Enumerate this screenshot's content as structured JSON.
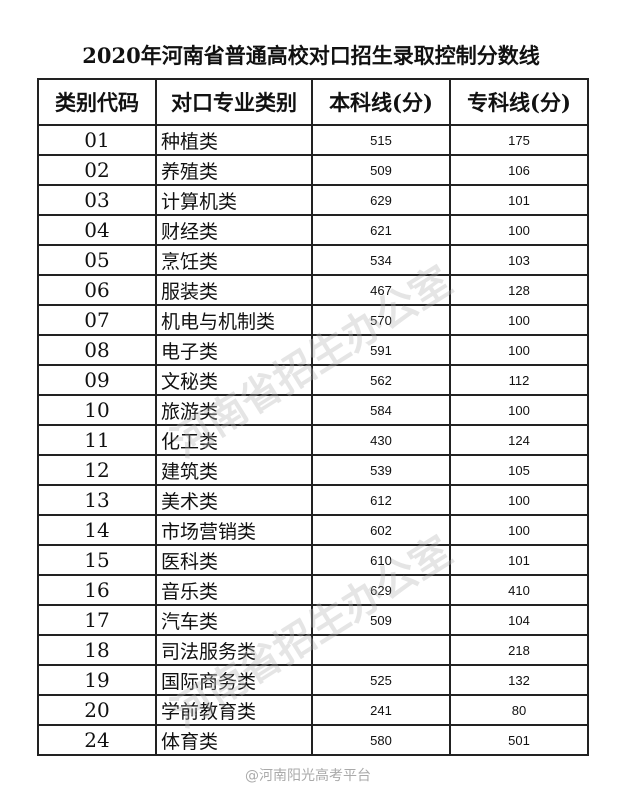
{
  "title": "2020年河南省普通高校对口招生录取控制分数线",
  "headers": [
    "类别代码",
    "对口专业类别",
    "本科线(分)",
    "专科线(分)"
  ],
  "rows": [
    [
      "01",
      "种植类",
      "515",
      "175"
    ],
    [
      "02",
      "养殖类",
      "509",
      "106"
    ],
    [
      "03",
      "计算机类",
      "629",
      "101"
    ],
    [
      "04",
      "财经类",
      "621",
      "100"
    ],
    [
      "05",
      "烹饪类",
      "534",
      "103"
    ],
    [
      "06",
      "服装类",
      "467",
      "128"
    ],
    [
      "07",
      "机电与机制类",
      "570",
      "100"
    ],
    [
      "08",
      "电子类",
      "591",
      "100"
    ],
    [
      "09",
      "文秘类",
      "562",
      "112"
    ],
    [
      "10",
      "旅游类",
      "584",
      "100"
    ],
    [
      "11",
      "化工类",
      "430",
      "124"
    ],
    [
      "12",
      "建筑类",
      "539",
      "105"
    ],
    [
      "13",
      "美术类",
      "612",
      "100"
    ],
    [
      "14",
      "市场营销类",
      "602",
      "100"
    ],
    [
      "15",
      "医科类",
      "610",
      "101"
    ],
    [
      "16",
      "音乐类",
      "629",
      "410"
    ],
    [
      "17",
      "汽车类",
      "509",
      "104"
    ],
    [
      "18",
      "司法服务类",
      "",
      "218"
    ],
    [
      "19",
      "国际商务类",
      "525",
      "132"
    ],
    [
      "20",
      "学前教育类",
      "241",
      "80"
    ],
    [
      "24",
      "体育类",
      "580",
      "501"
    ]
  ],
  "watermark": "河南省招生办公室",
  "footer": "@河南阳光高考平台"
}
